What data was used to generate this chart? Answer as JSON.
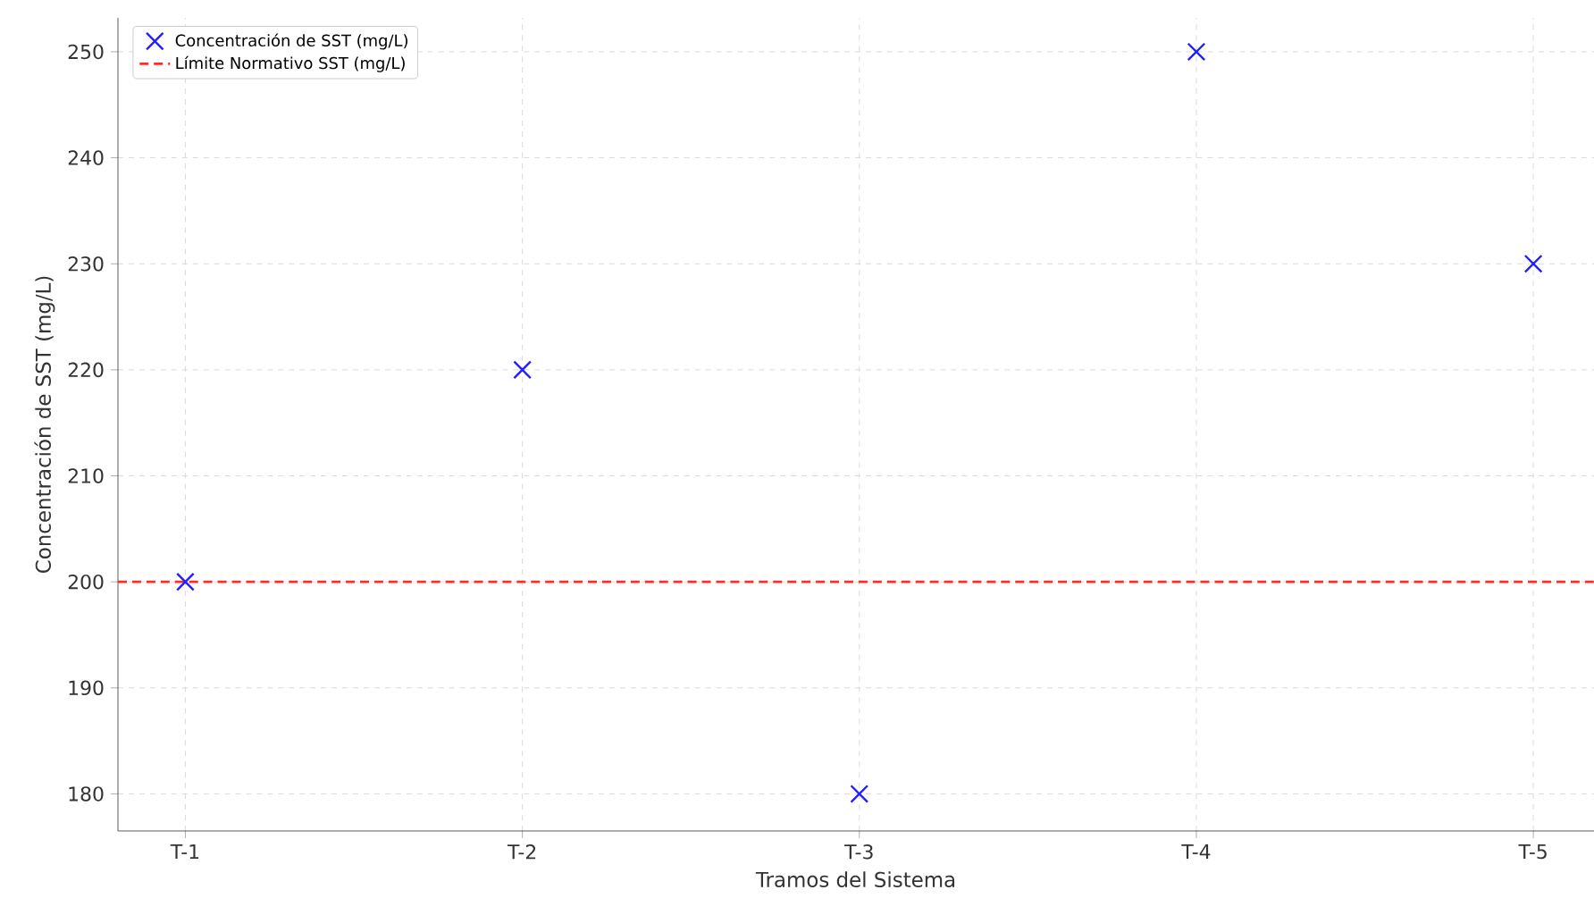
{
  "chart_data": {
    "type": "scatter",
    "xlabel": "Tramos del Sistema",
    "ylabel": "Concentración de SST (mg/L)",
    "categories": [
      "T-1",
      "T-2",
      "T-3",
      "T-4",
      "T-5"
    ],
    "series": [
      {
        "name": "Concentración de SST (mg/L)",
        "color": "#1f1fff",
        "values": [
          200,
          220,
          180,
          250,
          230
        ]
      }
    ],
    "ref_lines": [
      {
        "axis": "y",
        "value": 200,
        "label": "Límite Normativo SST (mg/L)",
        "color": "#ff2a2a",
        "line_style": "dashed"
      }
    ],
    "ylim": [
      176.5,
      253.2
    ],
    "yticks": [
      180,
      190,
      200,
      210,
      220,
      230,
      240,
      250
    ],
    "grid": true,
    "legend": "top left",
    "marker": "cross"
  }
}
